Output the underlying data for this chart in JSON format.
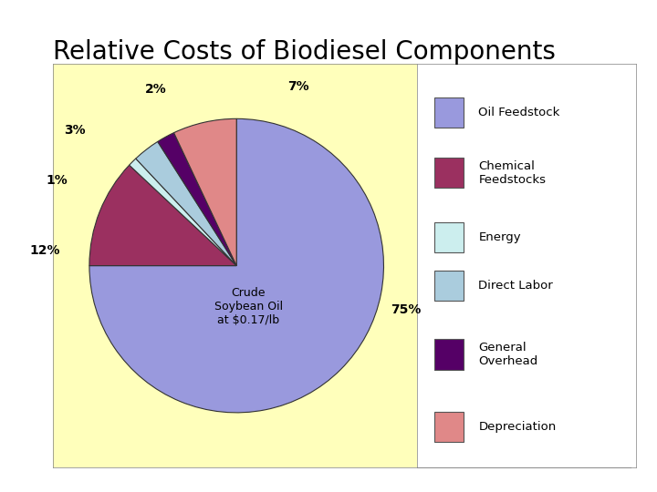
{
  "title": "Relative Costs of Biodiesel Components",
  "title_fontsize": 20,
  "title_fontweight": "normal",
  "values": [
    75,
    12,
    1,
    3,
    2,
    7
  ],
  "colors": [
    "#9999DD",
    "#9B3060",
    "#CCEEEE",
    "#AACCDD",
    "#550066",
    "#E08888"
  ],
  "legend_labels": [
    "Oil Feedstock",
    "Chemical\nFeedstocks",
    "Energy",
    "Direct Labor",
    "General\nOverhead",
    "Depreciation"
  ],
  "pct_labels": [
    "75%",
    "12%",
    "1%",
    "3%",
    "2%",
    "7%"
  ],
  "inner_label": "Crude\nSoybean Oil\nat $0.17/lb",
  "chart_bg": "#FFFFBB",
  "legend_bg": "#FFFFFF",
  "fig_bg": "#FFFFFF",
  "startangle": 90
}
